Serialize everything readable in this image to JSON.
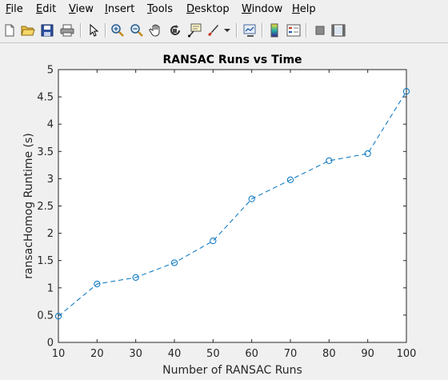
{
  "menubar": {
    "items": [
      {
        "mnemonic": "F",
        "rest": "ile"
      },
      {
        "mnemonic": "E",
        "rest": "dit"
      },
      {
        "mnemonic": "V",
        "rest": "iew"
      },
      {
        "mnemonic": "I",
        "rest": "nsert"
      },
      {
        "mnemonic": "T",
        "rest": "ools"
      },
      {
        "mnemonic": "D",
        "rest": "esktop"
      },
      {
        "mnemonic": "W",
        "rest": "indow"
      },
      {
        "mnemonic": "H",
        "rest": "elp"
      }
    ]
  },
  "toolbar": {
    "buttons": [
      "new-figure-icon",
      "open-file-icon",
      "save-figure-icon",
      "print-figure-icon",
      "edit-plot-arrow-icon",
      "zoom-in-icon",
      "zoom-out-icon",
      "pan-hand-icon",
      "rotate-3d-icon",
      "data-cursor-icon",
      "brush-icon",
      "brush-dropdown-icon",
      "link-plot-icon",
      "insert-colorbar-icon",
      "insert-legend-icon",
      "hide-plot-tools-icon",
      "show-plot-tools-icon"
    ]
  },
  "chart_data": {
    "type": "line",
    "title": "RANSAC Runs vs Time",
    "xlabel": "Number of RANSAC Runs",
    "ylabel": "ransacHomog Runtime (s)",
    "x": [
      10,
      20,
      30,
      40,
      50,
      60,
      70,
      80,
      90,
      100
    ],
    "series": [
      {
        "values": [
          0.48,
          1.07,
          1.19,
          1.46,
          1.86,
          2.63,
          2.98,
          3.33,
          3.46,
          4.6
        ],
        "color": "#0072bd",
        "line_style": "dashed",
        "marker": "circle"
      }
    ],
    "xlim": [
      10,
      100
    ],
    "ylim": [
      0,
      5
    ],
    "xticks": [
      "10",
      "20",
      "30",
      "40",
      "50",
      "60",
      "70",
      "80",
      "90",
      "100"
    ],
    "yticks": [
      "0",
      "0.5",
      "1",
      "1.5",
      "2",
      "2.5",
      "3",
      "3.5",
      "4",
      "4.5",
      "5"
    ],
    "grid": false
  }
}
